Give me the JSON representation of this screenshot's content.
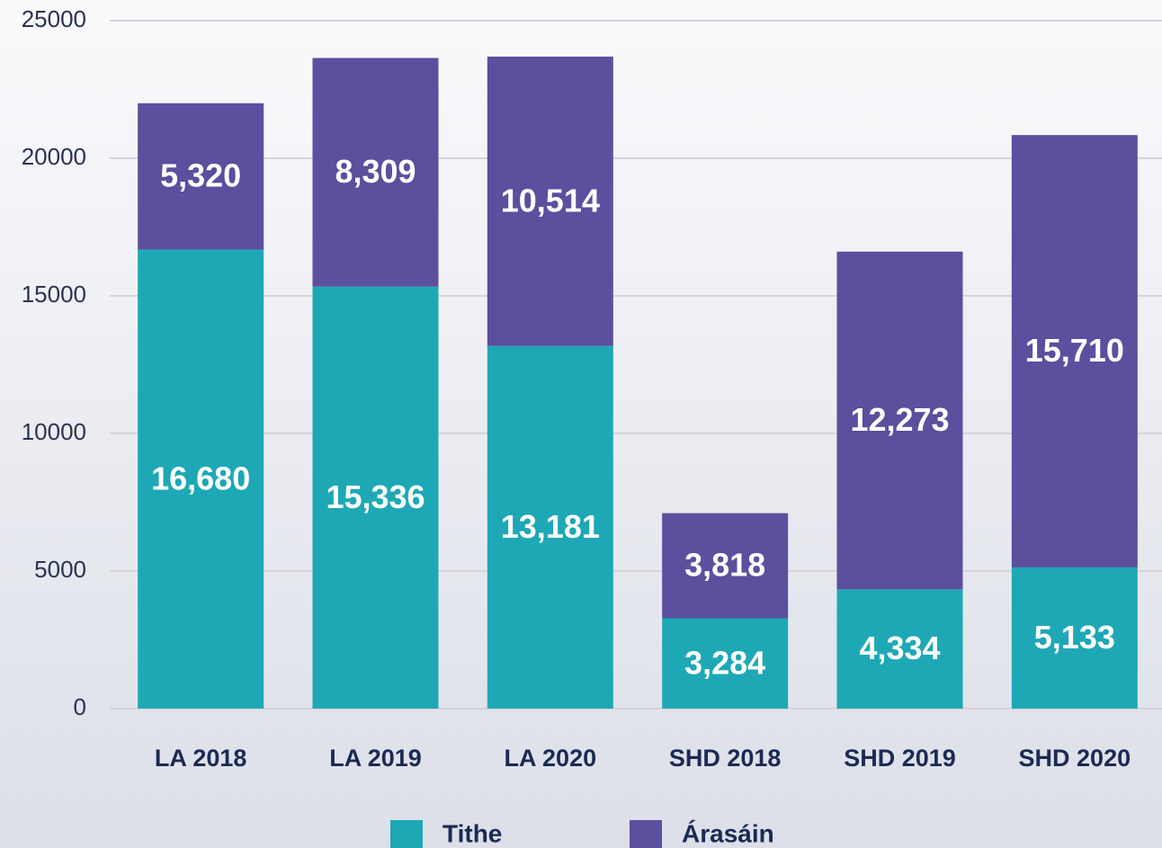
{
  "chart_data": {
    "type": "stacked_bar",
    "categories": [
      "LA 2018",
      "LA 2019",
      "LA 2020",
      "SHD 2018",
      "SHD 2019",
      "SHD 2020"
    ],
    "series": [
      {
        "name": "Tithe",
        "color": "#1ea8b5",
        "values": [
          16680,
          15336,
          13181,
          3284,
          4334,
          5133
        ],
        "value_labels": [
          "16,680",
          "15,336",
          "13,181",
          "3,284",
          "4,334",
          "5,133"
        ]
      },
      {
        "name": "Árasáin",
        "color": "#5b4f9e",
        "values": [
          5320,
          8309,
          10514,
          3818,
          12273,
          15710
        ],
        "value_labels": [
          "5,320",
          "8,309",
          "10,514",
          "3,818",
          "12,273",
          "15,710"
        ]
      }
    ],
    "ylim": [
      0,
      25000
    ],
    "yticks": [
      0,
      5000,
      10000,
      15000,
      20000,
      25000
    ],
    "grid": true,
    "legend": "bottom"
  }
}
